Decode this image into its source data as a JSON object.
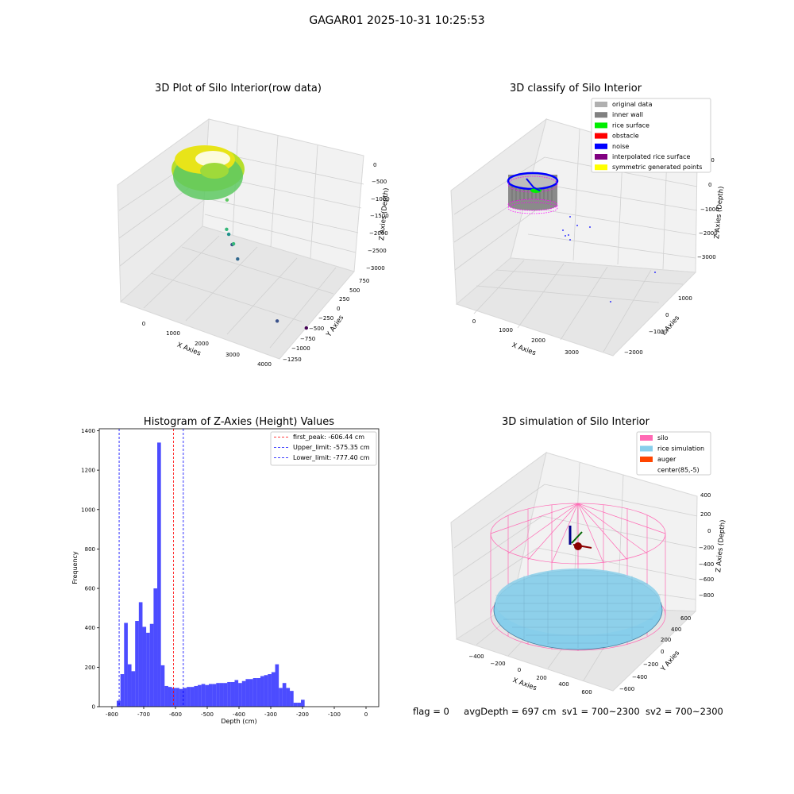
{
  "figure": {
    "suptitle": "GAGAR01 2025-10-31 10:25:53",
    "footer": {
      "flag": "flag = 0",
      "avg_depth": "avgDepth = 697 cm",
      "sv1": "sv1 = 700~2300",
      "sv2": "sv2 = 700~2300"
    }
  },
  "chart_data": [
    {
      "type": "scatter",
      "subtype": "3d",
      "title": "3D Plot of Silo Interior(row data)",
      "xlabel": "X Axies",
      "ylabel": "Y Axies",
      "zlabel": "Z Axies (Depth)",
      "x_ticks": [
        "0",
        "1000",
        "2000",
        "3000",
        "4000"
      ],
      "y_ticks": [
        "−1250",
        "−1000",
        "−750",
        "−500",
        "−250",
        "0",
        "250",
        "500",
        "750"
      ],
      "z_ticks": [
        "−3000",
        "−2500",
        "−2000",
        "−1500",
        "−1000",
        "−500",
        "0"
      ],
      "xlim": [
        -500,
        4200
      ],
      "ylim": [
        -1350,
        850
      ],
      "zlim": [
        -3100,
        100
      ],
      "colormap": "viridis",
      "cluster": {
        "description": "dense ring of points near x≈0–1000, z≈-500 to -1000"
      },
      "outliers": [
        {
          "x": 1150,
          "y": 150,
          "z": -1300
        },
        {
          "x": 1900,
          "y": 600,
          "z": -1600
        },
        {
          "x": 1500,
          "y": 300,
          "z": -1850
        },
        {
          "x": 1500,
          "y": 200,
          "z": -2050
        },
        {
          "x": 1700,
          "y": 150,
          "z": -2250
        },
        {
          "x": 800,
          "y": -250,
          "z": -2300
        },
        {
          "x": 3300,
          "y": -100,
          "z": -2800
        },
        {
          "x": 3000,
          "y": -1150,
          "z": -3000
        }
      ]
    },
    {
      "type": "scatter",
      "subtype": "3d",
      "title": "3D classify of Silo Interior",
      "xlabel": "X Axies",
      "ylabel": "Y Axies",
      "zlabel": "Z Axies (Depth)",
      "x_ticks": [
        "0",
        "1000",
        "2000",
        "3000"
      ],
      "y_ticks": [
        "−2000",
        "−1000",
        "0",
        "1000"
      ],
      "z_ticks": [
        "−3000",
        "−2000",
        "−1000",
        "0",
        "1000"
      ],
      "legend_position": "top-right",
      "legend": [
        {
          "label": "original data",
          "color": "#b0b0b0"
        },
        {
          "label": "inner wall",
          "color": "#808080"
        },
        {
          "label": "rice surface",
          "color": "#00ee00"
        },
        {
          "label": "obstacle",
          "color": "#ff0000"
        },
        {
          "label": "noise",
          "color": "#0000ff"
        },
        {
          "label": "interpolated rice surface",
          "color": "#800080"
        },
        {
          "label": "symmetric generated points",
          "color": "#ffff00"
        }
      ]
    },
    {
      "type": "bar",
      "subtype": "histogram",
      "title": "Histogram of Z-Axies (Height) Values",
      "xlabel": "Depth (cm)",
      "ylabel": "Frequency",
      "xlim": [
        -840,
        40
      ],
      "ylim": [
        0,
        1410
      ],
      "x_ticks": [
        -800,
        -700,
        -600,
        -500,
        -400,
        -300,
        -200,
        -100,
        0
      ],
      "y_ticks": [
        0,
        200,
        400,
        600,
        800,
        1000,
        1200,
        1400
      ],
      "bin_start": -785,
      "bin_width": 11.6,
      "values": [
        30,
        165,
        425,
        215,
        180,
        435,
        530,
        405,
        375,
        420,
        600,
        1340,
        210,
        105,
        100,
        95,
        95,
        90,
        95,
        100,
        100,
        105,
        110,
        115,
        110,
        115,
        115,
        120,
        120,
        120,
        125,
        125,
        135,
        120,
        130,
        140,
        140,
        145,
        145,
        155,
        160,
        165,
        175,
        215,
        95,
        120,
        95,
        80,
        20,
        20,
        35
      ],
      "bar_color": "#0000ff",
      "bar_alpha": 0.7,
      "legend_position": "top-right",
      "vlines": [
        {
          "label": "first_peak: -606.44 cm",
          "x": -606.44,
          "color": "#ff0000"
        },
        {
          "label": "Upper_limit: -575.35 cm",
          "x": -575.35,
          "color": "#0000ff"
        },
        {
          "label": "Lower_limit: -777.40 cm",
          "x": -777.4,
          "color": "#0000ff"
        }
      ]
    },
    {
      "type": "scatter",
      "subtype": "3d",
      "title": "3D simulation of Silo Interior",
      "xlabel": "X Axies",
      "ylabel": "Y Axies",
      "zlabel": "Z Axies (Depth)",
      "x_ticks": [
        "−400",
        "−200",
        "0",
        "200",
        "400",
        "600"
      ],
      "y_ticks": [
        "−600",
        "−400",
        "−200",
        "0",
        "200",
        "400",
        "600"
      ],
      "z_ticks": [
        "−800",
        "−600",
        "−400",
        "−200",
        "0",
        "200",
        "400"
      ],
      "legend_position": "top-right",
      "legend": [
        {
          "label": "silo",
          "color": "#ff69b4"
        },
        {
          "label": "rice simulation",
          "color": "#87ceeb"
        },
        {
          "label": "auger",
          "color": "#ff4500"
        },
        {
          "label": "center(85,-5)",
          "color": "none"
        }
      ]
    }
  ]
}
